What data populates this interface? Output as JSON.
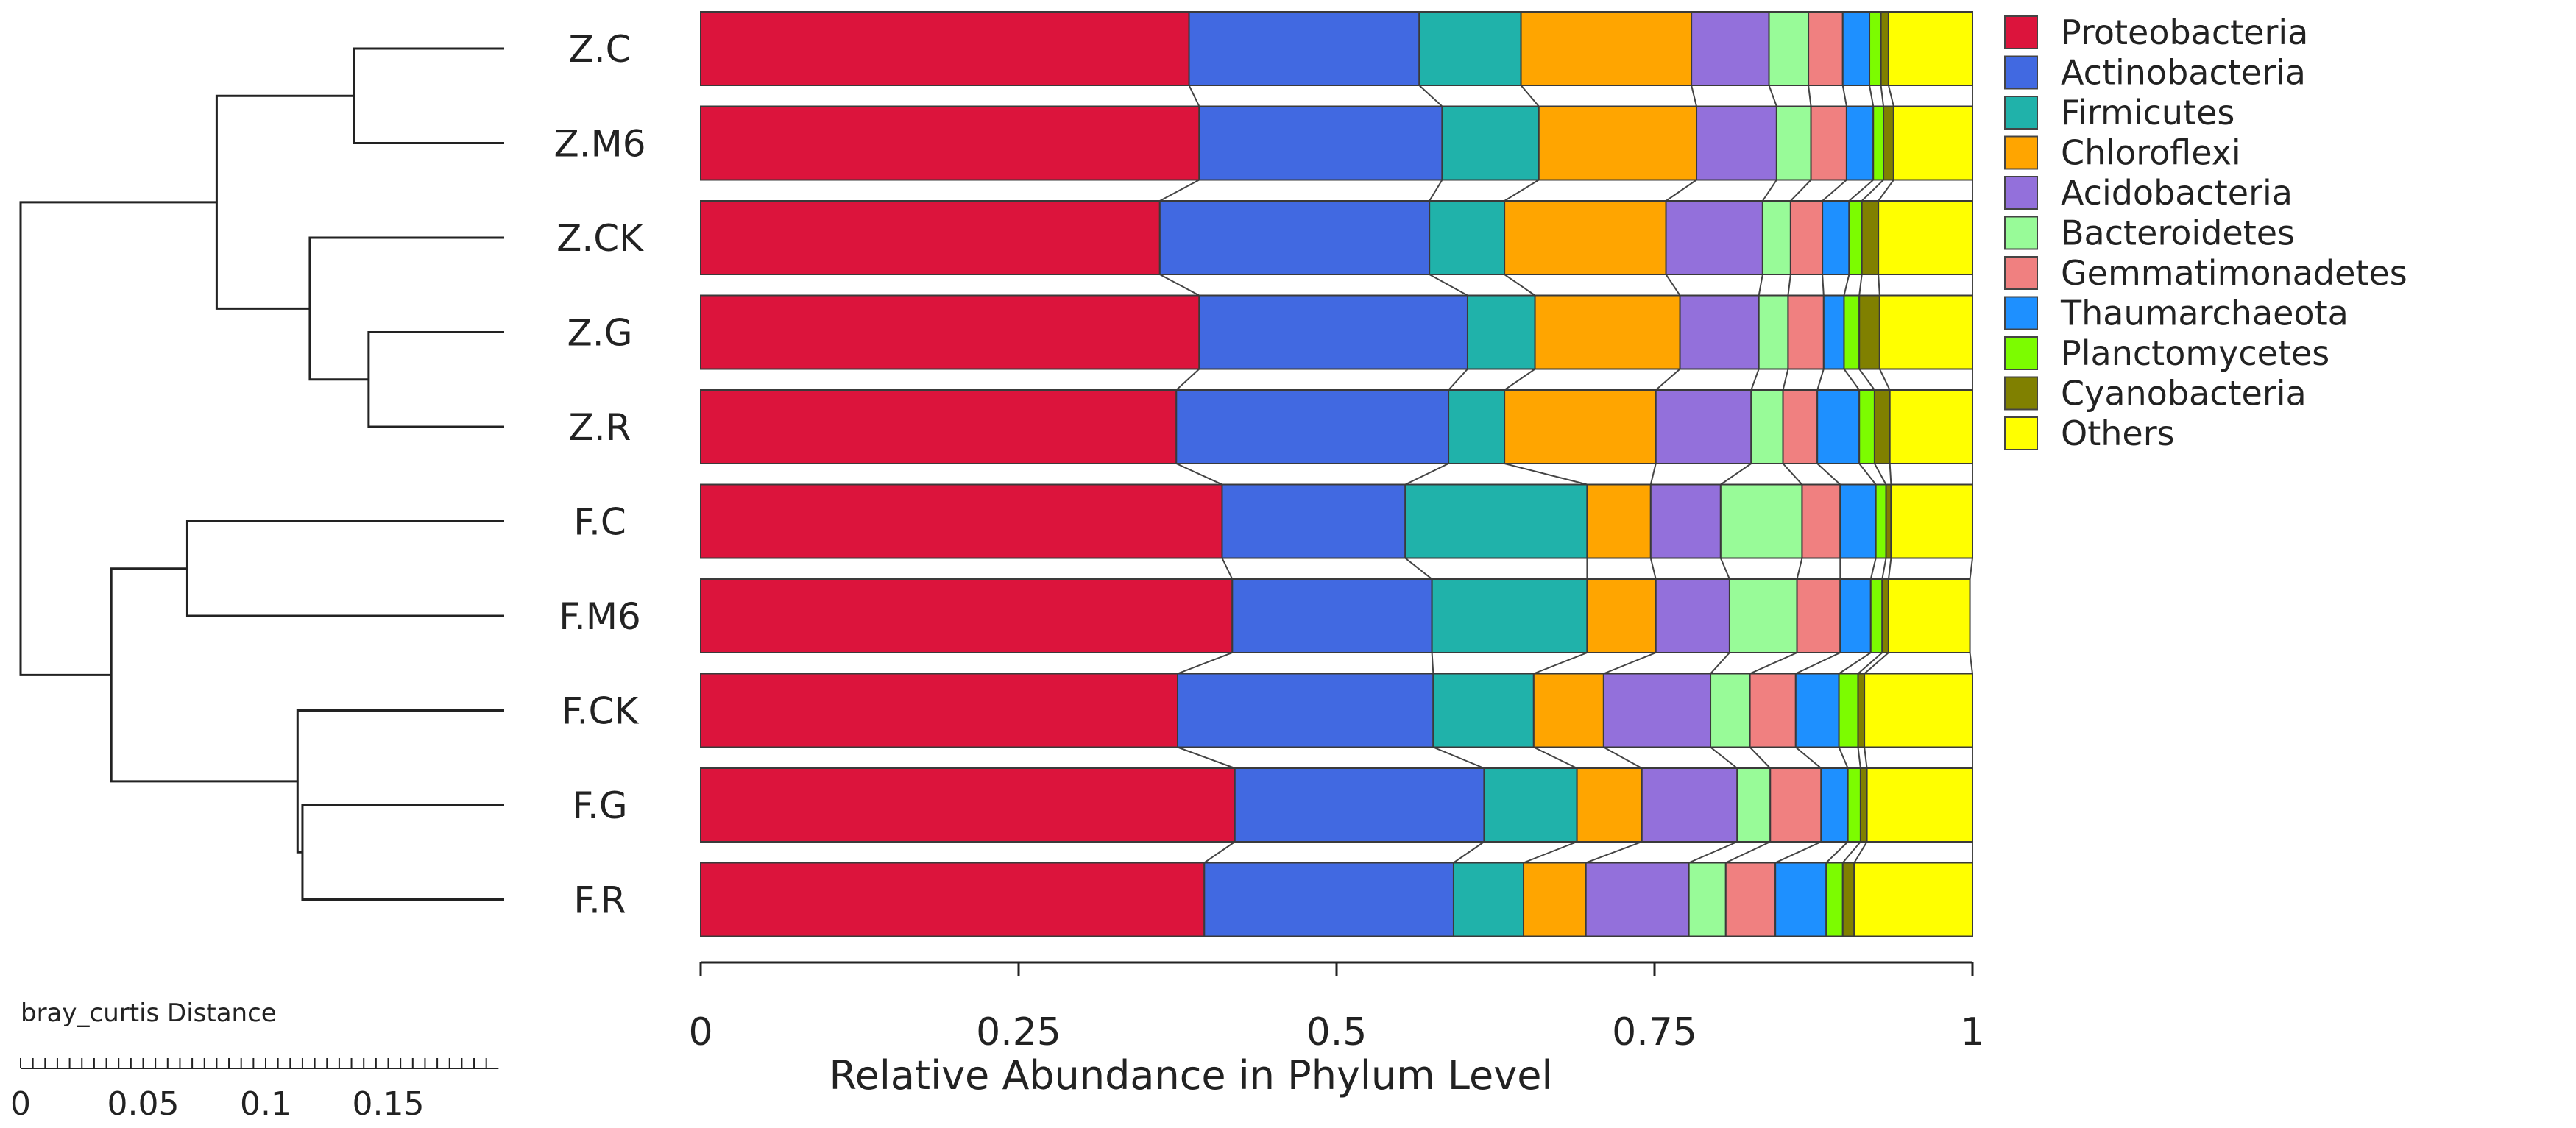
{
  "chart_data": {
    "type": "bar",
    "orientation": "horizontal",
    "stacked": true,
    "normalized": true,
    "xlabel": "Relative Abundance in Phylum Level",
    "xlim": [
      0,
      1
    ],
    "xticks": [
      0,
      0.25,
      0.5,
      0.75,
      1
    ],
    "xtick_labels": [
      "0",
      "0.25",
      "0.5",
      "0.75",
      "1"
    ],
    "categories": [
      "Z.C",
      "Z.M6",
      "Z.CK",
      "Z.G",
      "Z.R",
      "F.C",
      "F.M6",
      "F.CK",
      "F.G",
      "F.R"
    ],
    "legend_position": "right",
    "series": [
      {
        "name": "Proteobacteria",
        "color": "#dc143c",
        "values": [
          0.384,
          0.392,
          0.361,
          0.392,
          0.374,
          0.41,
          0.418,
          0.375,
          0.42,
          0.396
        ]
      },
      {
        "name": "Actinobacteria",
        "color": "#4169e1",
        "values": [
          0.181,
          0.191,
          0.212,
          0.211,
          0.214,
          0.144,
          0.157,
          0.201,
          0.196,
          0.196
        ]
      },
      {
        "name": "Firmicutes",
        "color": "#20b2aa",
        "values": [
          0.08,
          0.076,
          0.059,
          0.053,
          0.044,
          0.143,
          0.122,
          0.079,
          0.073,
          0.055
        ]
      },
      {
        "name": "Chloroflexi",
        "color": "#ffa500",
        "values": [
          0.134,
          0.124,
          0.127,
          0.114,
          0.119,
          0.05,
          0.054,
          0.055,
          0.051,
          0.049
        ]
      },
      {
        "name": "Acidobacteria",
        "color": "#9370db",
        "values": [
          0.061,
          0.063,
          0.076,
          0.062,
          0.075,
          0.055,
          0.058,
          0.084,
          0.075,
          0.081
        ]
      },
      {
        "name": "Bacteroidetes",
        "color": "#98fb98",
        "values": [
          0.031,
          0.027,
          0.022,
          0.023,
          0.025,
          0.064,
          0.053,
          0.031,
          0.026,
          0.029
        ]
      },
      {
        "name": "Gemmatimonadetes",
        "color": "#f08080",
        "values": [
          0.027,
          0.028,
          0.025,
          0.028,
          0.027,
          0.03,
          0.034,
          0.036,
          0.04,
          0.039
        ]
      },
      {
        "name": "Thaumarchaeota",
        "color": "#1e90ff",
        "values": [
          0.021,
          0.021,
          0.021,
          0.016,
          0.033,
          0.028,
          0.024,
          0.034,
          0.021,
          0.04
        ]
      },
      {
        "name": "Planctomycetes",
        "color": "#7cfc00",
        "values": [
          0.009,
          0.008,
          0.01,
          0.012,
          0.012,
          0.008,
          0.009,
          0.015,
          0.01,
          0.013
        ]
      },
      {
        "name": "Cyanobacteria",
        "color": "#808000",
        "values": [
          0.006,
          0.008,
          0.013,
          0.016,
          0.012,
          0.004,
          0.005,
          0.005,
          0.005,
          0.009
        ]
      },
      {
        "name": "Others",
        "color": "#ffff00",
        "values": [
          0.066,
          0.062,
          0.074,
          0.073,
          0.065,
          0.064,
          0.064,
          0.085,
          0.083,
          0.093
        ]
      }
    ],
    "dendrogram": {
      "metric_label": "bray_curtis Distance",
      "scale_ticks": [
        0,
        0.05,
        0.1,
        0.15
      ],
      "scale_tick_labels": [
        "0",
        "0.05",
        "0.1",
        "0.15"
      ],
      "merges": [
        {
          "id": "zc_zm6",
          "children": [
            "Z.C",
            "Z.M6"
          ],
          "height": 0.056
        },
        {
          "id": "zg_zr",
          "children": [
            "Z.G",
            "Z.R"
          ],
          "height": 0.05
        },
        {
          "id": "zck_zgr",
          "children": [
            "Z.CK",
            "zg_zr"
          ],
          "height": 0.074
        },
        {
          "id": "z_all",
          "children": [
            "zc_zm6",
            "zck_zgr"
          ],
          "height": 0.112
        },
        {
          "id": "fg_fr",
          "children": [
            "F.G",
            "F.R"
          ],
          "height": 0.077
        },
        {
          "id": "fck_fgr",
          "children": [
            "F.CK",
            "fg_fr"
          ],
          "height": 0.079
        },
        {
          "id": "fc_fm6",
          "children": [
            "F.C",
            "F.M6"
          ],
          "height": 0.124
        },
        {
          "id": "f_all",
          "children": [
            "fc_fm6",
            "fck_fgr"
          ],
          "height": 0.155
        },
        {
          "id": "root",
          "children": [
            "z_all",
            "f_all"
          ],
          "height": 0.192
        }
      ]
    }
  }
}
